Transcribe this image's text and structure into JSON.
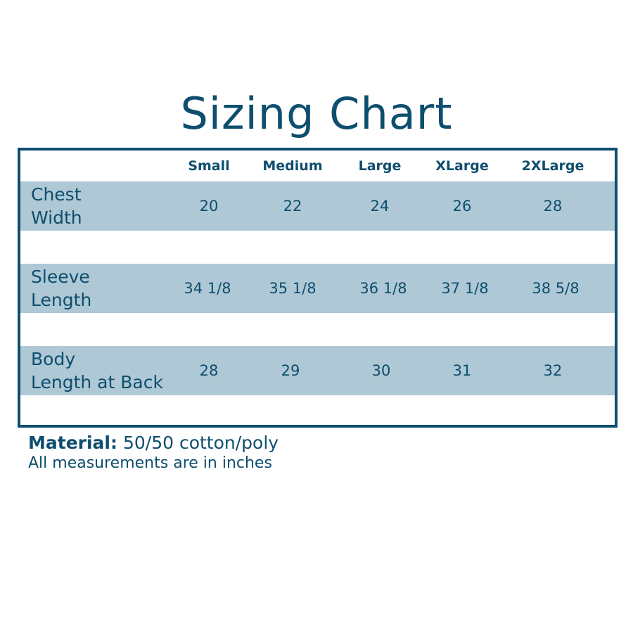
{
  "title": "Sizing Chart",
  "columns": [
    "Small",
    "Medium",
    "Large",
    "XLarge",
    "2XLarge"
  ],
  "rows": [
    {
      "label_line1": "Chest",
      "label_line2": "Width",
      "values": [
        "20",
        "22",
        "24",
        "26",
        "28"
      ]
    },
    {
      "label_line1": "Sleeve",
      "label_line2": "Length",
      "values": [
        "34 1/8",
        "35 1/8",
        "36 1/8",
        "37 1/8",
        "38 5/8"
      ]
    },
    {
      "label_line1": "Body",
      "label_line2": "Length at Back",
      "values": [
        "28",
        "29",
        "30",
        "31",
        "32"
      ]
    }
  ],
  "footer": {
    "material_label": "Material:",
    "material_value": "50/50 cotton/poly",
    "note": "All measurements are in inches"
  },
  "colors": {
    "primary": "#0e4e6e",
    "band": "#aec8d5"
  }
}
